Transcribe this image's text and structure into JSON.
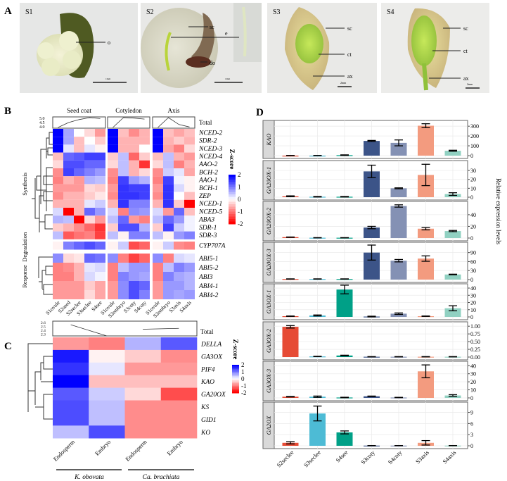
{
  "panel_labels": {
    "a": "A",
    "b": "B",
    "c": "C",
    "d": "D"
  },
  "panel_a": {
    "photos": [
      {
        "stage": "S1",
        "labels": [
          "o"
        ],
        "scale": "1mm"
      },
      {
        "stage": "S2",
        "labels": [
          "sc",
          "e",
          "do"
        ],
        "scale": "1mm"
      },
      {
        "stage": "S3",
        "labels": [
          "sc",
          "ct",
          "ax"
        ],
        "scale": "2mm"
      },
      {
        "stage": "S4",
        "labels": [
          "sc",
          "ct",
          "ax"
        ],
        "scale": "2mm"
      }
    ]
  },
  "colors": {
    "high": "#0000ff",
    "mid": "#ffffff",
    "low": "#ff0000"
  },
  "chart_data": [
    {
      "type": "heatmap",
      "panel": "B",
      "groups": [
        {
          "name": "Seed coat",
          "columns": [
            "S1ovule",
            "S2seed",
            "S2seclee",
            "S3seclee",
            "S4see"
          ]
        },
        {
          "name": "Cotyledon",
          "columns": [
            "S1ovule",
            "S2embryo",
            "S3coty",
            "S4coty"
          ]
        },
        {
          "name": "Axis",
          "columns": [
            "S1ovule",
            "S2embryo",
            "S3axis",
            "S4axis"
          ]
        }
      ],
      "total_label": "Total",
      "total_ticks": [
        "5.0",
        "4.5",
        "4.0"
      ],
      "total_values": [
        [
          4.0,
          4.5,
          4.8,
          5.0,
          4.9
        ],
        [
          4.0,
          5.0,
          4.95,
          4.85
        ],
        [
          4.0,
          5.0,
          4.3,
          4.05
        ]
      ],
      "legend_title": "Z-score",
      "legend_ticks": [
        "2",
        "1",
        "0",
        "-1",
        "-2"
      ],
      "sections": [
        {
          "name": "Synthesis",
          "rows": [
            {
              "gene": "NCED-2",
              "z": [
                2,
                0.7,
                0,
                -0.3,
                -0.8,
                2,
                -0.5,
                -0.9,
                -0.6,
                2,
                -0.5,
                -0.7,
                -0.5
              ]
            },
            {
              "gene": "SDR-2",
              "z": [
                2,
                0.7,
                -0.5,
                0,
                -0.4,
                2,
                -0.6,
                -0.6,
                -0.6,
                2,
                -0.6,
                -0.4,
                -0.6
              ]
            },
            {
              "gene": "NCED-3",
              "z": [
                2,
                0.2,
                -0.5,
                0.2,
                -0.1,
                2,
                -0.6,
                -0.6,
                0,
                2,
                -0.7,
                -1,
                -0.3
              ]
            },
            {
              "gene": "NCED-4",
              "z": [
                -0.5,
                1.2,
                1.3,
                1.5,
                1.5,
                -0.4,
                0.5,
                -1.2,
                -0.4,
                -0.5,
                0.5,
                -0.6,
                -0.8
              ]
            },
            {
              "gene": "AAO-2",
              "z": [
                -0.3,
                1.4,
                1.4,
                1.2,
                1.2,
                -0.3,
                0.5,
                -0.6,
                -1.6,
                -0.3,
                0.5,
                -1,
                -0.6
              ]
            },
            {
              "gene": "BCH-2",
              "z": [
                -0.9,
                1.5,
                1.2,
                1,
                0.8,
                -0.9,
                0.5,
                -0.6,
                -0.3,
                -0.9,
                0.4,
                0.2,
                -0.7
              ]
            },
            {
              "gene": "AAO-1",
              "z": [
                -1,
                -0.6,
                -0.8,
                0.6,
                0.5,
                -1,
                1.5,
                0.8,
                0.6,
                -1,
                1.5,
                0.1,
                -0.1
              ]
            },
            {
              "gene": "BCH-1",
              "z": [
                -0.8,
                -0.8,
                -0.8,
                -0.3,
                -0.4,
                -0.8,
                1.6,
                1.5,
                1.5,
                -0.8,
                1.6,
                0.3,
                -0.1
              ]
            },
            {
              "gene": "ZEP",
              "z": [
                -0.9,
                -0.6,
                -0.6,
                -0.4,
                -0.2,
                -0.9,
                1.6,
                1.6,
                1.5,
                -0.9,
                1.6,
                0,
                -0.5
              ]
            },
            {
              "gene": "NCED-1",
              "z": [
                -0.6,
                -0.6,
                -0.6,
                0.2,
                0.4,
                -0.6,
                1.6,
                1,
                1,
                -0.6,
                1.6,
                -0.4,
                -2
              ]
            },
            {
              "gene": "NCED-5",
              "z": [
                0.3,
                -2,
                -0.6,
                1.2,
                0.8,
                0.3,
                -1,
                0.9,
                0.8,
                0.3,
                -0.8,
                1.2,
                -0.5
              ]
            },
            {
              "gene": "ABA3",
              "z": [
                0.6,
                0.5,
                -2,
                -0.3,
                -0.8,
                0.5,
                1.2,
                -0.8,
                -1,
                0.5,
                1.2,
                0.8,
                0.1
              ]
            },
            {
              "gene": "SDR-1",
              "z": [
                -0.4,
                -0.6,
                -0.9,
                -1.2,
                -1.6,
                -0.4,
                1.4,
                1.4,
                0.6,
                -0.4,
                1.5,
                0.4,
                0.1
              ]
            },
            {
              "gene": "SDR-3",
              "z": [
                0.5,
                -1.3,
                -1.1,
                -1,
                -1.5,
                0.5,
                -0.1,
                1,
                1,
                0.5,
                -0.1,
                0.8,
                1
              ]
            }
          ]
        },
        {
          "name": "Degradation",
          "rows": [
            {
              "gene": "CYP707A",
              "z": [
                -0.1,
                1,
                1.2,
                1.4,
                1.2,
                -0.1,
                0.4,
                -1.4,
                -1.2,
                -0.1,
                0.4,
                -0.9,
                -1
              ]
            }
          ]
        },
        {
          "name": "Response",
          "rows": [
            {
              "gene": "ABI5-1",
              "z": [
                0.9,
                -0.3,
                -0.2,
                1.2,
                1.1,
                0.9,
                -1,
                -1.5,
                -1.2,
                0.9,
                -1,
                0.3,
                0.2
              ]
            },
            {
              "gene": "ABI5-2",
              "z": [
                -1,
                -0.9,
                -0.6,
                0.2,
                0.3,
                -1,
                0.5,
                0.8,
                0.8,
                -1,
                0.5,
                1,
                0.8
              ]
            },
            {
              "gene": "ABI3",
              "z": [
                -1,
                -1,
                -0.6,
                0.3,
                0.1,
                -1,
                1,
                0.8,
                0.7,
                -1,
                1,
                0.7,
                0.6
              ]
            },
            {
              "gene": "ABI4-1",
              "z": [
                -0.8,
                -0.8,
                -0.8,
                -0.4,
                -0.7,
                -0.8,
                0.9,
                1.4,
                1.2,
                -0.8,
                0.8,
                0.8,
                0.6
              ]
            },
            {
              "gene": "ABI4-2",
              "z": [
                -0.8,
                -0.8,
                -0.8,
                -0.3,
                -0.7,
                -0.8,
                0.9,
                1.4,
                1,
                -0.8,
                0.8,
                0.7,
                0.8
              ]
            }
          ]
        }
      ]
    },
    {
      "type": "heatmap",
      "panel": "C",
      "columns": [
        "Endosperm",
        "Embryo",
        "Endosperm",
        "Embryo"
      ],
      "species": [
        "K. obovata",
        "Ca. brachiata"
      ],
      "total_label": "Total",
      "total_ticks": [
        "2.6",
        "2.5",
        "2.4",
        "2.3"
      ],
      "total_values": [
        2.55,
        2.3,
        2.45,
        2.47
      ],
      "legend_title": "Z-score",
      "legend_ticks": [
        "2",
        "1",
        "0",
        "-1",
        "-2"
      ],
      "rows": [
        {
          "gene": "DELLA",
          "z": [
            -0.8,
            -1,
            0.6,
            1.3
          ]
        },
        {
          "gene": "GA3OX",
          "z": [
            1.8,
            -0.1,
            -0.4,
            -0.9
          ]
        },
        {
          "gene": "PIF4",
          "z": [
            1.6,
            0.2,
            -0.8,
            -0.8
          ]
        },
        {
          "gene": "KAO",
          "z": [
            2,
            -0.5,
            -0.5,
            -0.5
          ]
        },
        {
          "gene": "GA20OX",
          "z": [
            1.3,
            0.4,
            -0.3,
            -1.4
          ]
        },
        {
          "gene": "KS",
          "z": [
            1.4,
            0.5,
            -0.9,
            -0.9
          ]
        },
        {
          "gene": "GID1",
          "z": [
            1.4,
            0.5,
            -0.9,
            -0.9
          ]
        },
        {
          "gene": "KO",
          "z": [
            0.5,
            1.4,
            -0.9,
            -0.9
          ]
        }
      ]
    },
    {
      "type": "bar",
      "panel": "D",
      "categories": [
        "S2seclee",
        "S3seclee",
        "S4see",
        "S3coty",
        "S4coty",
        "S3axis",
        "S4axis"
      ],
      "category_colors": [
        "#e64b35",
        "#4dbbd5",
        "#00a087",
        "#3c5488",
        "#8491b4",
        "#f39b7f",
        "#91d1c2"
      ],
      "ylabel": "Relative expression levels",
      "grid": true,
      "error_bars": true,
      "facets": [
        {
          "gene": "KAO",
          "ylim": [
            0,
            330
          ],
          "ticks": [
            0,
            100,
            200,
            300
          ],
          "values": [
            0,
            0,
            5,
            150,
            130,
            305,
            50
          ],
          "errors": [
            2,
            2,
            3,
            5,
            30,
            20,
            5
          ]
        },
        {
          "gene": "GA20OX-1",
          "ylim": [
            0,
            38
          ],
          "ticks": [
            0,
            10,
            20,
            30
          ],
          "values": [
            1,
            0.5,
            0.5,
            29,
            10,
            25,
            3.5
          ],
          "errors": [
            0.5,
            0.3,
            0.3,
            7,
            0.5,
            12,
            1.5
          ]
        },
        {
          "gene": "GA20OX-2",
          "ylim": [
            0,
            58
          ],
          "ticks": [
            0,
            20,
            40
          ],
          "values": [
            1.5,
            0.5,
            0.5,
            18,
            55,
            16,
            12
          ],
          "errors": [
            0.3,
            0.2,
            0.2,
            2,
            2,
            2,
            1
          ]
        },
        {
          "gene": "GA20OX-3",
          "ylim": [
            0,
            115
          ],
          "ticks": [
            0,
            30,
            60,
            90
          ],
          "values": [
            2,
            2,
            2,
            90,
            63,
            70,
            17
          ],
          "errors": [
            0.5,
            0.5,
            0.5,
            25,
            4,
            9,
            1
          ]
        },
        {
          "gene": "GA3OX-1",
          "ylim": [
            0,
            42
          ],
          "ticks": [
            0,
            10,
            20,
            30,
            40
          ],
          "values": [
            1,
            2,
            38,
            0.5,
            4.5,
            1,
            12
          ],
          "errors": [
            0.3,
            0.7,
            6,
            0.5,
            1,
            0.3,
            3.5
          ]
        },
        {
          "gene": "GA3OX-2",
          "ylim": [
            0,
            1.05
          ],
          "ticks": [
            "0.00",
            "0.25",
            "0.50",
            "0.75",
            "1.00"
          ],
          "values": [
            0.98,
            0.02,
            0.05,
            0.01,
            0.01,
            0.01,
            0.01
          ],
          "errors": [
            0.04,
            0.005,
            0.01,
            0.005,
            0.005,
            0.005,
            0.005
          ]
        },
        {
          "gene": "GA3OX-3",
          "ylim": [
            0,
            42
          ],
          "ticks": [
            0,
            10,
            20,
            30,
            40
          ],
          "values": [
            1.5,
            1.5,
            0.5,
            2,
            0.5,
            33,
            3
          ],
          "errors": [
            0.3,
            0.8,
            0.3,
            0.3,
            0.2,
            8,
            1
          ]
        },
        {
          "gene": "GA2OX",
          "ylim": [
            0,
            11
          ],
          "ticks": [
            0,
            3,
            6,
            9
          ],
          "values": [
            0.8,
            8.7,
            3.6,
            0.05,
            0.05,
            0.8,
            0.05
          ],
          "errors": [
            0.3,
            2,
            0.4,
            0.02,
            0.02,
            0.6,
            0.02
          ]
        }
      ]
    }
  ]
}
